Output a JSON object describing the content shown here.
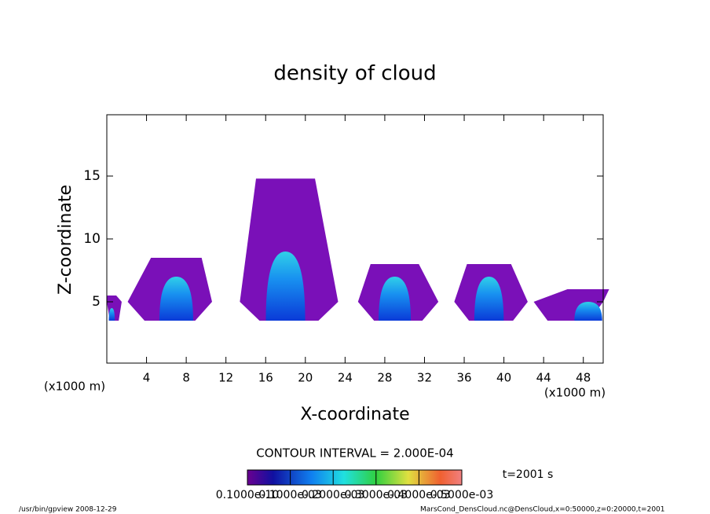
{
  "chart_data": {
    "type": "contour",
    "title": "density of cloud",
    "x_label": "X-coordinate",
    "y_label": "Z-coordinate",
    "x_unit_left": "(x1000 m)",
    "x_unit_right": "(x1000 m)",
    "xlim": [
      0,
      50
    ],
    "ylim": [
      0,
      20
    ],
    "xticks": [
      4,
      8,
      12,
      16,
      20,
      24,
      28,
      32,
      36,
      40,
      44,
      48
    ],
    "yticks": [
      5,
      10,
      15
    ],
    "cells": {
      "x": [
        0.5,
        7,
        18,
        29,
        38.5,
        48.5
      ],
      "left": [
        0,
        2.1,
        13.4,
        25.3,
        35,
        43
      ],
      "right": [
        1.5,
        10.6,
        23.3,
        33.4,
        42.4,
        50
      ],
      "top": [
        5.5,
        8.5,
        14.8,
        8,
        8,
        6
      ],
      "core_top": [
        4.5,
        7,
        9,
        7,
        7,
        5
      ],
      "base": [
        3.5,
        3.5,
        3.5,
        3.5,
        3.5,
        3.5
      ]
    },
    "contour_interval": "CONTOUR INTERVAL = 2.000E-04",
    "colorbar_ticks": [
      {
        "value": 1e-11,
        "label": "0.1000e-10"
      },
      {
        "value": 0.0001,
        "label": "0.1000e-03"
      },
      {
        "value": 0.0002,
        "label": "0.2000e-03"
      },
      {
        "value": 0.0003,
        "label": "0.3000e-03"
      },
      {
        "value": 0.0004,
        "label": "0.4000e-03"
      },
      {
        "value": 0.0005,
        "label": "0.5000e-03"
      }
    ],
    "time_label": "t=2001 s",
    "footer_left": "/usr/bin/gpview  2008-12-29",
    "footer_right": "MarsCond_DensCloud.nc@DensCloud,x=0:50000,z=0:20000,t=2001"
  }
}
